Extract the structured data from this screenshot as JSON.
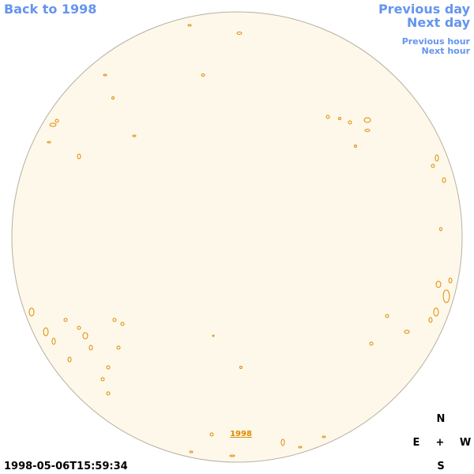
{
  "navigation": {
    "back": "Back to 1998",
    "previous_day": "Previous day",
    "next_day": "Next day",
    "previous_hour": "Previous hour",
    "next_hour": "Next hour"
  },
  "image": {
    "year_link": "1998",
    "timestamp": "1998-05-06T15:59:34"
  },
  "compass": {
    "north": "N",
    "east": "E",
    "center": "+",
    "west": "W",
    "south": "S"
  }
}
